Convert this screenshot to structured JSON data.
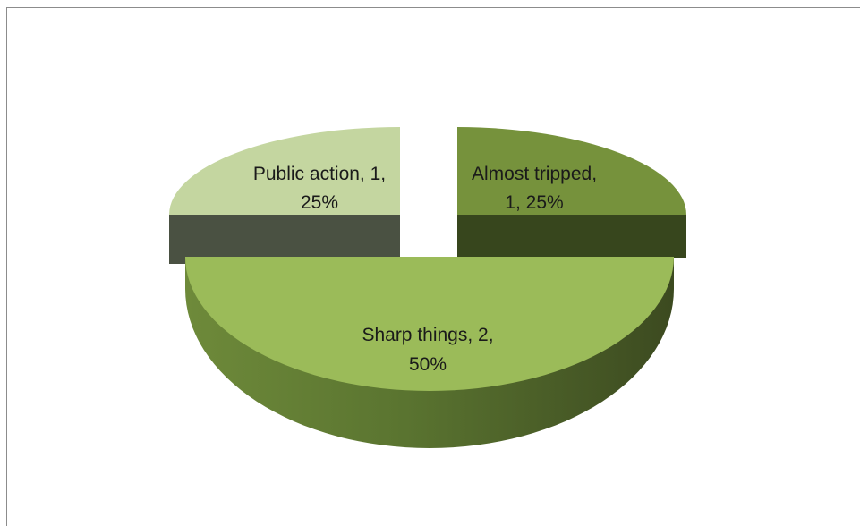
{
  "chart_data": {
    "type": "pie",
    "title": "",
    "slices": [
      {
        "name": "Almost tripped",
        "value": 1,
        "percent": 25,
        "color": "#76923c",
        "side_color": "#37461d",
        "label_line1": "Almost tripped,",
        "label_line2": "1, 25%"
      },
      {
        "name": "Sharp things",
        "value": 2,
        "percent": 50,
        "color": "#9bbb59",
        "side_color": "#4f6228",
        "label_line1": "Sharp things, 2,",
        "label_line2": "50%"
      },
      {
        "name": "Public action",
        "value": 1,
        "percent": 25,
        "color": "#c4d6a0",
        "side_color": "#4a5142",
        "label_line1": "Public action, 1,",
        "label_line2": "25%"
      }
    ],
    "legend": "none",
    "style": "3D exploded pie"
  }
}
